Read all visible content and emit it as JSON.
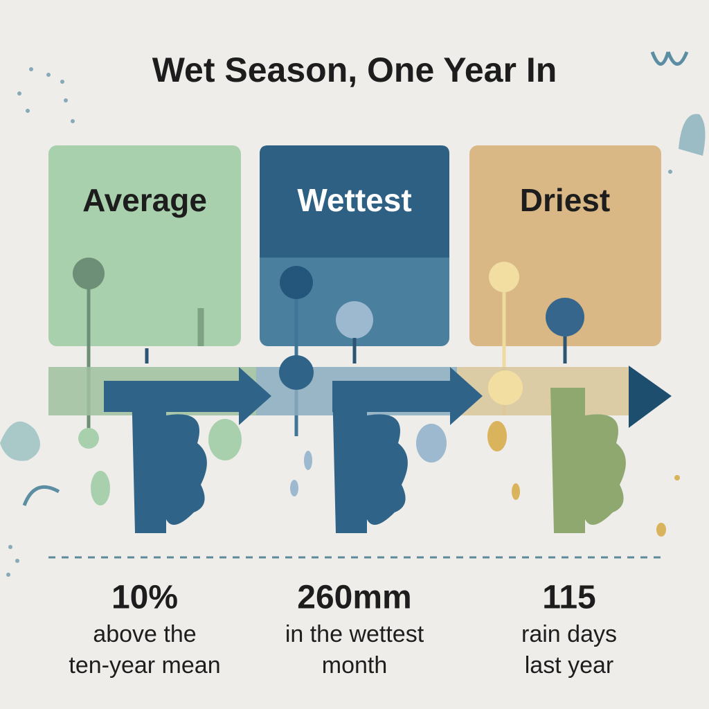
{
  "title": "Wet Season, One Year In",
  "panels": [
    {
      "label": "Average"
    },
    {
      "label": "Wettest"
    },
    {
      "label": "Driest"
    }
  ],
  "stats": [
    {
      "value": "10%",
      "lines": [
        "above the",
        "ten-year mean"
      ]
    },
    {
      "value": "260mm",
      "lines": [
        "in the wettest",
        "month"
      ]
    },
    {
      "value": "115",
      "lines": [
        "rain days",
        "last year"
      ]
    }
  ]
}
